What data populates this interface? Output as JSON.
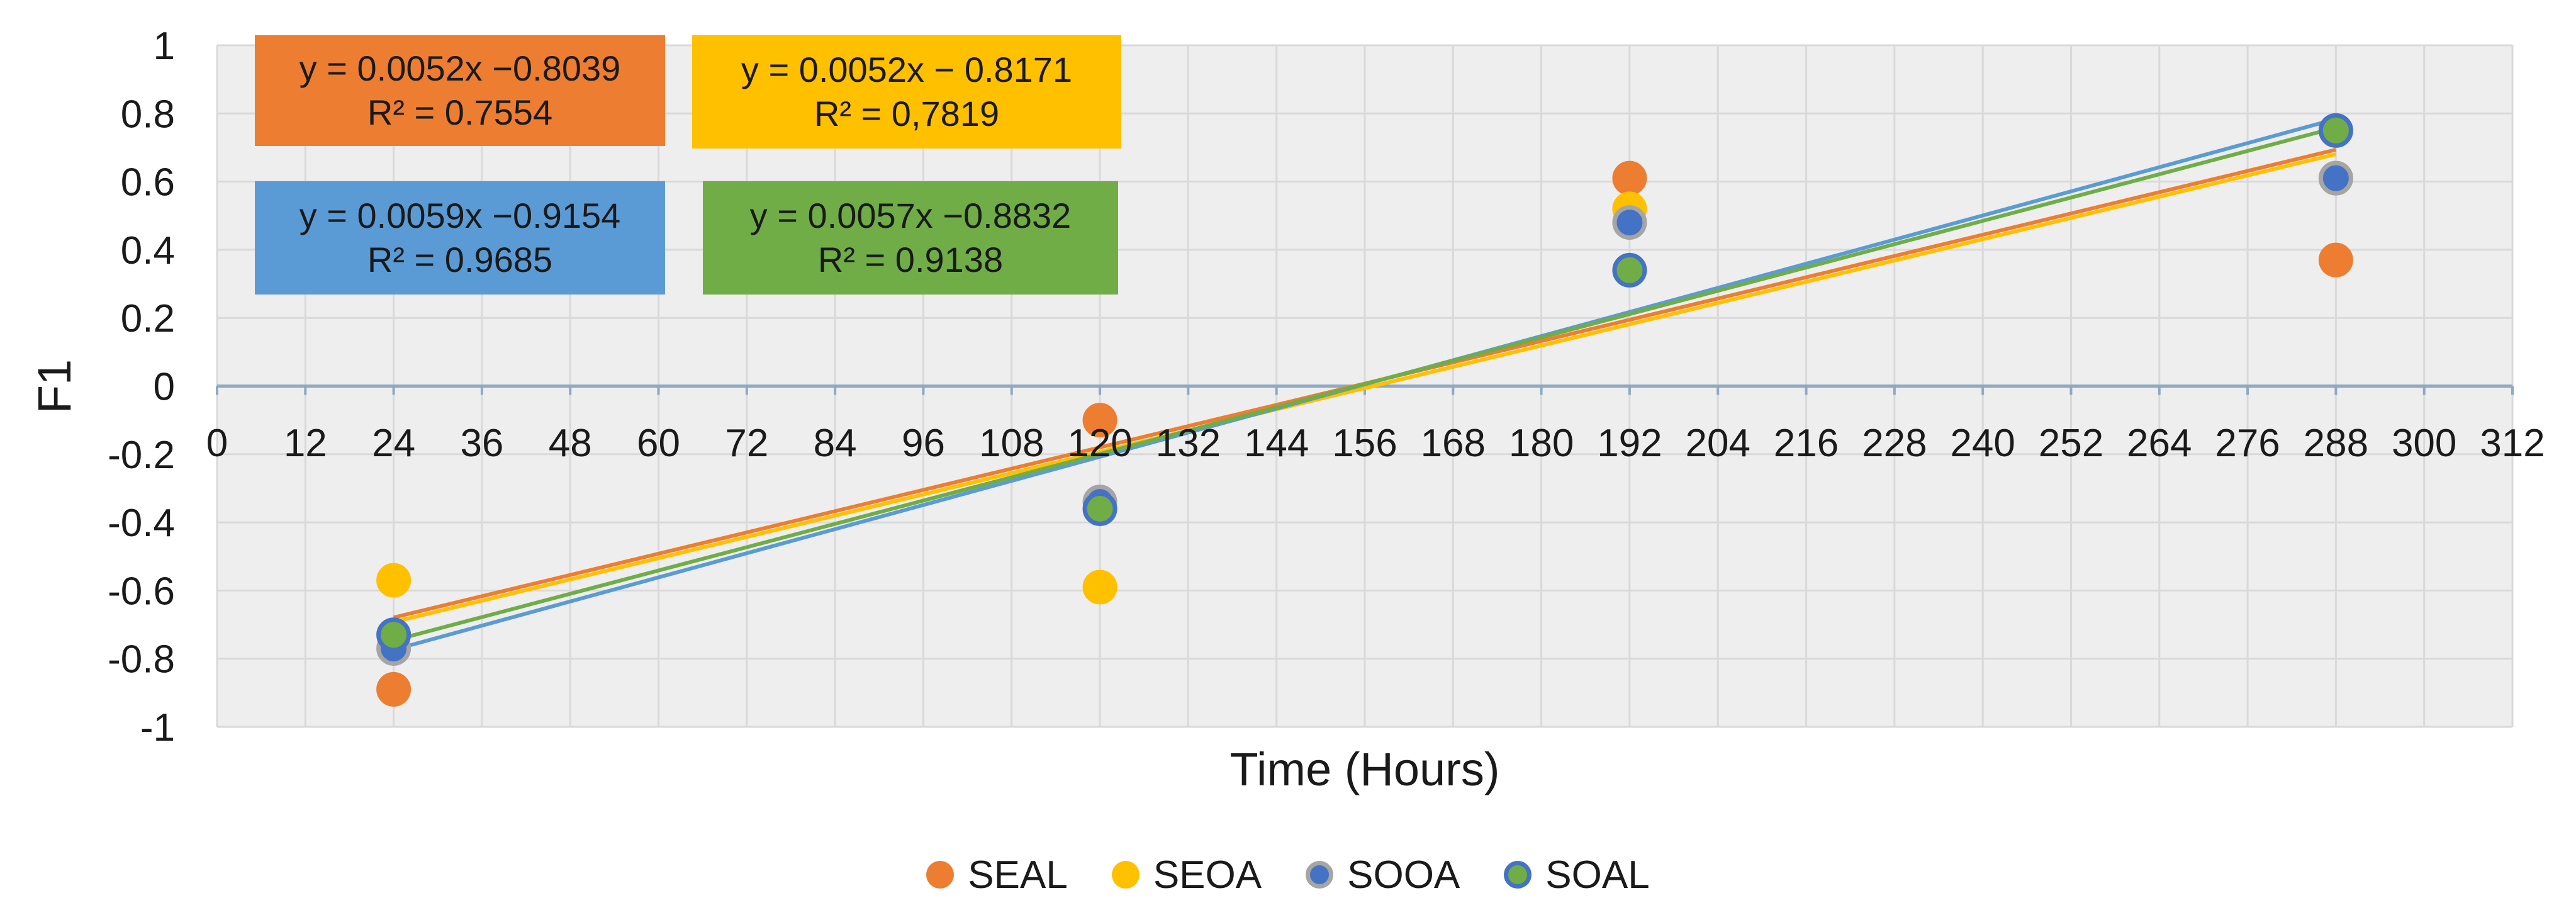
{
  "chart_data": {
    "type": "scatter",
    "title": "",
    "xlabel": "Time (Hours)",
    "ylabel": "F1",
    "xlim": [
      0,
      312
    ],
    "ylim": [
      -1,
      1
    ],
    "x_ticks": [
      "0",
      "12",
      "24",
      "36",
      "48",
      "60",
      "72",
      "84",
      "96",
      "108",
      "120",
      "132",
      "144",
      "156",
      "168",
      "180",
      "192",
      "204",
      "216",
      "228",
      "240",
      "252",
      "264",
      "276",
      "288",
      "300",
      "312"
    ],
    "y_ticks": [
      "1",
      "0.8",
      "0.6",
      "0.4",
      "0.2",
      "0",
      "-0.2",
      "-0.4",
      "-0.6",
      "-0.8",
      "-1"
    ],
    "grid": true,
    "legend_position": "bottom",
    "series": [
      {
        "name": "SEAL",
        "color": "#ED7D31",
        "marker_edge": "#ED7D31",
        "points": [
          [
            24,
            -0.89
          ],
          [
            120,
            -0.1
          ],
          [
            192,
            0.61
          ],
          [
            288,
            0.37
          ]
        ],
        "trendline": {
          "slope": 0.0052,
          "intercept": -0.8039
        },
        "equation": "y = 0.0052x −0.8039",
        "r2": "R² = 0.7554",
        "box_color": "#ED7D31"
      },
      {
        "name": "SEOA",
        "color": "#FFC000",
        "marker_edge": "#FFC000",
        "points": [
          [
            24,
            -0.57
          ],
          [
            120,
            -0.59
          ],
          [
            192,
            0.52
          ],
          [
            288,
            0.61
          ]
        ],
        "trendline": {
          "slope": 0.0052,
          "intercept": -0.8171
        },
        "equation": "y = 0.0052x − 0.8171",
        "r2": "R² = 0,7819",
        "box_color": "#FFC000"
      },
      {
        "name": "SOOA",
        "color": "#4472C4",
        "marker_edge": "#A5A5A5",
        "points": [
          [
            24,
            -0.77
          ],
          [
            120,
            -0.34
          ],
          [
            192,
            0.48
          ],
          [
            288,
            0.61
          ]
        ],
        "trendline": {
          "slope": 0.0059,
          "intercept": -0.9154
        },
        "equation": "y = 0.0059x −0.9154",
        "r2": "R² = 0.9685",
        "box_color": "#5B9BD5"
      },
      {
        "name": "SOAL",
        "color": "#70AD47",
        "marker_edge": "#4472C4",
        "points": [
          [
            24,
            -0.73
          ],
          [
            120,
            -0.36
          ],
          [
            192,
            0.34
          ],
          [
            288,
            0.75
          ]
        ],
        "trendline": {
          "slope": 0.0057,
          "intercept": -0.8832
        },
        "equation": "y = 0.0057x −0.8832",
        "r2": "R² = 0.9138",
        "box_color": "#70AD47"
      }
    ]
  },
  "colors": {
    "plot_background": "#EEEEEE",
    "gridline": "#D9D9D9",
    "axis_line": "#8EA9C1",
    "seal_trend": "#ED7D31",
    "seoa_trend": "#FFC000",
    "sooa_trend": "#5B9BD5",
    "soal_trend": "#70AD47"
  }
}
